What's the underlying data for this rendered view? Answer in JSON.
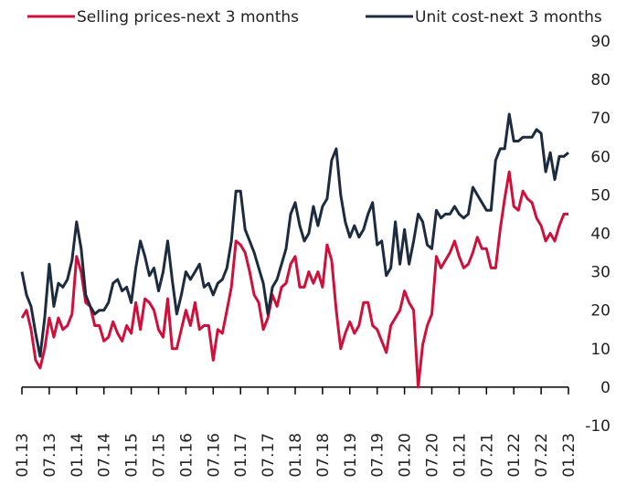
{
  "chart_data": {
    "type": "line",
    "categories": [
      "01.13",
      null,
      null,
      null,
      null,
      null,
      "07.13",
      null,
      null,
      null,
      null,
      null,
      "01.14",
      null,
      null,
      null,
      null,
      null,
      "07.14",
      null,
      null,
      null,
      null,
      null,
      "01.15",
      null,
      null,
      null,
      null,
      null,
      "07.15",
      null,
      null,
      null,
      null,
      null,
      "01.16",
      null,
      null,
      null,
      null,
      null,
      "07.16",
      null,
      null,
      null,
      null,
      null,
      "01.17",
      null,
      null,
      null,
      null,
      null,
      "07.17",
      null,
      null,
      null,
      null,
      null,
      "01.18",
      null,
      null,
      null,
      null,
      null,
      "07.18",
      null,
      null,
      null,
      null,
      null,
      "01.19",
      null,
      null,
      null,
      null,
      null,
      "07.19",
      null,
      null,
      null,
      null,
      null,
      "01.20",
      null,
      null,
      null,
      null,
      null,
      "07.20",
      null,
      null,
      null,
      null,
      null,
      "01.21",
      null,
      null,
      null,
      null,
      null,
      "07.21",
      null,
      null,
      null,
      null,
      null,
      "01.22",
      null,
      null,
      null,
      null,
      null,
      "07.22",
      null,
      null,
      null,
      null,
      null,
      "01.23"
    ],
    "series": [
      {
        "name": "Selling prices-next 3 months",
        "color": "#d0103a",
        "values": [
          18,
          20,
          15,
          7,
          5,
          10,
          18,
          13,
          18,
          15,
          16,
          19,
          34,
          30,
          22,
          21,
          16,
          16,
          12,
          13,
          17,
          14,
          12,
          16,
          14,
          22,
          15,
          23,
          22,
          20,
          15,
          13,
          23,
          10,
          10,
          15,
          20,
          16,
          22,
          15,
          16,
          16,
          7,
          15,
          14,
          20,
          26,
          38,
          37,
          35,
          30,
          24,
          22,
          15,
          18,
          24,
          21,
          26,
          27,
          32,
          34,
          26,
          26,
          30,
          27,
          30,
          26,
          37,
          33,
          20,
          10,
          14,
          17,
          14,
          16,
          22,
          22,
          16,
          15,
          12,
          9,
          16,
          18,
          20,
          25,
          22,
          20,
          0,
          11,
          16,
          19,
          34,
          31,
          33,
          35,
          38,
          34,
          31,
          32,
          35,
          39,
          36,
          36,
          31,
          31,
          41,
          49,
          56,
          47,
          46,
          51,
          49,
          48,
          44,
          42,
          38,
          40,
          38,
          42,
          45,
          45
        ]
      },
      {
        "name": "Unit cost-next 3 months",
        "color": "#1c2b3e",
        "values": [
          30,
          24,
          21,
          14,
          8,
          18,
          32,
          21,
          27,
          26,
          28,
          33,
          43,
          36,
          24,
          21,
          19,
          20,
          20,
          22,
          27,
          28,
          25,
          26,
          22,
          31,
          38,
          34,
          29,
          31,
          25,
          30,
          38,
          28,
          19,
          24,
          30,
          28,
          30,
          32,
          26,
          27,
          24,
          27,
          28,
          31,
          38,
          51,
          51,
          41,
          38,
          35,
          31,
          27,
          19,
          26,
          28,
          32,
          36,
          45,
          48,
          42,
          38,
          40,
          47,
          42,
          47,
          49,
          59,
          62,
          50,
          43,
          39,
          42,
          39,
          41,
          45,
          48,
          37,
          38,
          29,
          31,
          43,
          32,
          41,
          32,
          38,
          45,
          43,
          37,
          36,
          46,
          44,
          45,
          45,
          47,
          45,
          44,
          45,
          52,
          50,
          48,
          46,
          46,
          59,
          62,
          62,
          71,
          64,
          64,
          65,
          65,
          65,
          67,
          66,
          56,
          61,
          54,
          60,
          60,
          61
        ]
      }
    ],
    "ylim": [
      -10,
      90
    ],
    "yticks": [
      -10,
      0,
      10,
      20,
      30,
      40,
      50,
      60,
      70,
      80,
      90
    ],
    "grid": false,
    "legend": "top"
  }
}
